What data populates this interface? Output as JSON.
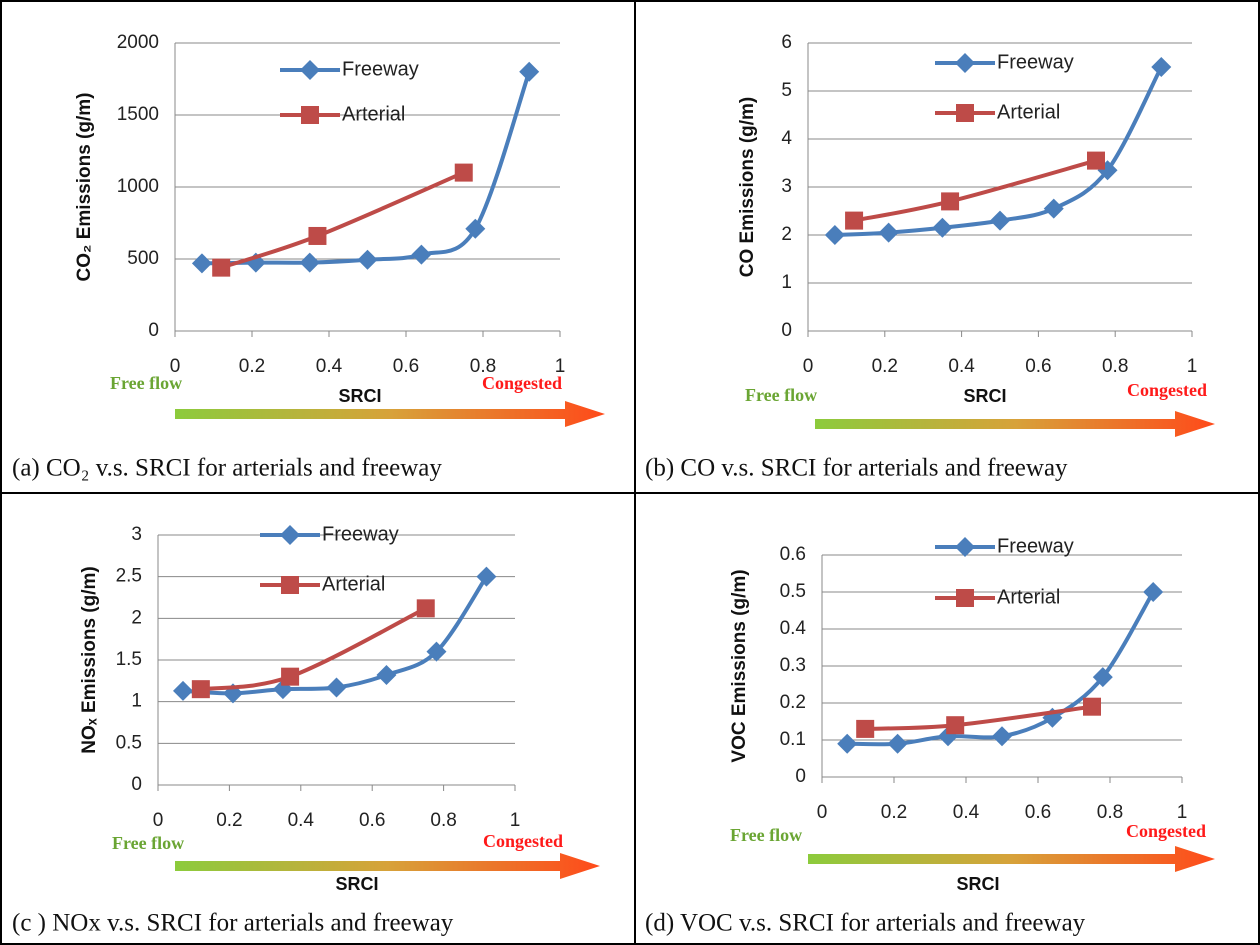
{
  "chart_data": [
    {
      "type": "line",
      "y_label": "CO₂ Emissions (g/m)",
      "x_label": "SRCI",
      "start_label": "Free flow",
      "end_label": "Congested",
      "caption": "(a) CO₂ v.s. SRCI for arterials and freeway",
      "smooth": true,
      "grid": true,
      "xlim": [
        0,
        1
      ],
      "xticks": [
        0,
        0.2,
        0.4,
        0.6,
        0.8,
        1
      ],
      "ylim": [
        0,
        2000
      ],
      "yticks": [
        0,
        500,
        1000,
        1500,
        2000
      ],
      "series": [
        {
          "name": "Freeway",
          "color": "#4a7ebb",
          "marker": "diamond",
          "x": [
            0.07,
            0.21,
            0.35,
            0.5,
            0.64,
            0.78,
            0.92
          ],
          "values": [
            470,
            475,
            475,
            495,
            530,
            710,
            1800
          ]
        },
        {
          "name": "Arterial",
          "color": "#be4b48",
          "marker": "square",
          "x": [
            0.12,
            0.37,
            0.75
          ],
          "values": [
            440,
            660,
            1100
          ]
        }
      ]
    },
    {
      "type": "line",
      "y_label": "CO Emissions (g/m)",
      "x_label": "SRCI",
      "start_label": "Free flow",
      "end_label": "Congested",
      "caption": "(b) CO v.s. SRCI for arterials and freeway",
      "smooth": true,
      "grid": true,
      "xlim": [
        0,
        1
      ],
      "xticks": [
        0,
        0.2,
        0.4,
        0.6,
        0.8,
        1
      ],
      "ylim": [
        0,
        6
      ],
      "yticks": [
        0,
        1,
        2,
        3,
        4,
        5,
        6
      ],
      "series": [
        {
          "name": "Freeway",
          "color": "#4a7ebb",
          "marker": "diamond",
          "x": [
            0.07,
            0.21,
            0.35,
            0.5,
            0.64,
            0.78,
            0.92
          ],
          "values": [
            2.0,
            2.05,
            2.15,
            2.3,
            2.55,
            3.35,
            5.5
          ]
        },
        {
          "name": "Arterial",
          "color": "#be4b48",
          "marker": "square",
          "x": [
            0.12,
            0.37,
            0.75
          ],
          "values": [
            2.3,
            2.7,
            3.55
          ]
        }
      ]
    },
    {
      "type": "line",
      "y_label": "NOₓ Emissions (g/m)",
      "x_label": "SRCI",
      "start_label": "Free flow",
      "end_label": "Congested",
      "caption": "(c ) NOx v.s. SRCI for arterials and freeway",
      "smooth": true,
      "grid": true,
      "xlim": [
        0,
        1
      ],
      "xticks": [
        0,
        0.2,
        0.4,
        0.6,
        0.8,
        1
      ],
      "ylim": [
        0,
        3
      ],
      "yticks": [
        0,
        0.5,
        1,
        1.5,
        2,
        2.5,
        3
      ],
      "series": [
        {
          "name": "Freeway",
          "color": "#4a7ebb",
          "marker": "diamond",
          "x": [
            0.07,
            0.21,
            0.35,
            0.5,
            0.64,
            0.78,
            0.92
          ],
          "values": [
            1.13,
            1.1,
            1.15,
            1.17,
            1.32,
            1.6,
            2.5
          ]
        },
        {
          "name": "Arterial",
          "color": "#be4b48",
          "marker": "square",
          "x": [
            0.12,
            0.37,
            0.75
          ],
          "values": [
            1.15,
            1.3,
            2.12
          ]
        }
      ]
    },
    {
      "type": "line",
      "y_label": "VOC Emissions (g/m)",
      "x_label": "SRCI",
      "start_label": "Free flow",
      "end_label": "Congested",
      "caption": "(d) VOC v.s. SRCI for arterials and freeway",
      "smooth": true,
      "grid": true,
      "xlim": [
        0,
        1
      ],
      "xticks": [
        0,
        0.2,
        0.4,
        0.6,
        0.8,
        1
      ],
      "ylim": [
        0,
        0.6
      ],
      "yticks": [
        0,
        0.1,
        0.2,
        0.3,
        0.4,
        0.5,
        0.6
      ],
      "series": [
        {
          "name": "Freeway",
          "color": "#4a7ebb",
          "marker": "diamond",
          "x": [
            0.07,
            0.21,
            0.35,
            0.5,
            0.64,
            0.78,
            0.92
          ],
          "values": [
            0.09,
            0.09,
            0.11,
            0.11,
            0.16,
            0.27,
            0.5
          ]
        },
        {
          "name": "Arterial",
          "color": "#be4b48",
          "marker": "square",
          "x": [
            0.12,
            0.37,
            0.75
          ],
          "values": [
            0.13,
            0.14,
            0.19
          ]
        }
      ]
    }
  ]
}
